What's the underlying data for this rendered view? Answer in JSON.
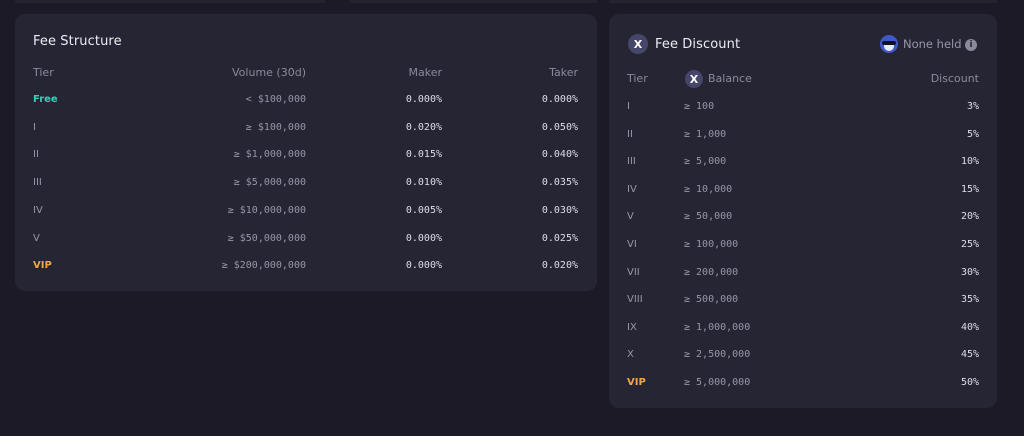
{
  "fee_structure": {
    "title": "Fee Structure",
    "headers": {
      "tier": "Tier",
      "volume": "Volume (30d)",
      "maker": "Maker",
      "taker": "Taker"
    },
    "rows": [
      {
        "tier": "Free",
        "volume": "< $100,000",
        "maker": "0.000%",
        "taker": "0.000%"
      },
      {
        "tier": "I",
        "volume": "≥ $100,000",
        "maker": "0.020%",
        "taker": "0.050%"
      },
      {
        "tier": "II",
        "volume": "≥ $1,000,000",
        "maker": "0.015%",
        "taker": "0.040%"
      },
      {
        "tier": "III",
        "volume": "≥ $5,000,000",
        "maker": "0.010%",
        "taker": "0.035%"
      },
      {
        "tier": "IV",
        "volume": "≥ $10,000,000",
        "maker": "0.005%",
        "taker": "0.030%"
      },
      {
        "tier": "V",
        "volume": "≥ $50,000,000",
        "maker": "0.000%",
        "taker": "0.025%"
      },
      {
        "tier": "VIP",
        "volume": "≥ $200,000,000",
        "maker": "0.000%",
        "taker": "0.020%"
      }
    ]
  },
  "fee_discount": {
    "title": "Fee Discount",
    "held_label": "None held",
    "token_icon": "x-token-icon",
    "mascot_icon": "mascot-avatar",
    "headers": {
      "tier": "Tier",
      "balance": "Balance",
      "discount": "Discount"
    },
    "rows": [
      {
        "tier": "I",
        "balance": "≥ 100",
        "discount": "3%"
      },
      {
        "tier": "II",
        "balance": "≥ 1,000",
        "discount": "5%"
      },
      {
        "tier": "III",
        "balance": "≥ 5,000",
        "discount": "10%"
      },
      {
        "tier": "IV",
        "balance": "≥ 10,000",
        "discount": "15%"
      },
      {
        "tier": "V",
        "balance": "≥ 50,000",
        "discount": "20%"
      },
      {
        "tier": "VI",
        "balance": "≥ 100,000",
        "discount": "25%"
      },
      {
        "tier": "VII",
        "balance": "≥ 200,000",
        "discount": "30%"
      },
      {
        "tier": "VIII",
        "balance": "≥ 500,000",
        "discount": "35%"
      },
      {
        "tier": "IX",
        "balance": "≥ 1,000,000",
        "discount": "40%"
      },
      {
        "tier": "X",
        "balance": "≥ 2,500,000",
        "discount": "45%"
      },
      {
        "tier": "VIP",
        "balance": "≥ 5,000,000",
        "discount": "50%"
      }
    ]
  },
  "colors": {
    "background": "#1b1a26",
    "card": "#262533",
    "free": "#2ed3b7",
    "vip": "#f0a845"
  }
}
